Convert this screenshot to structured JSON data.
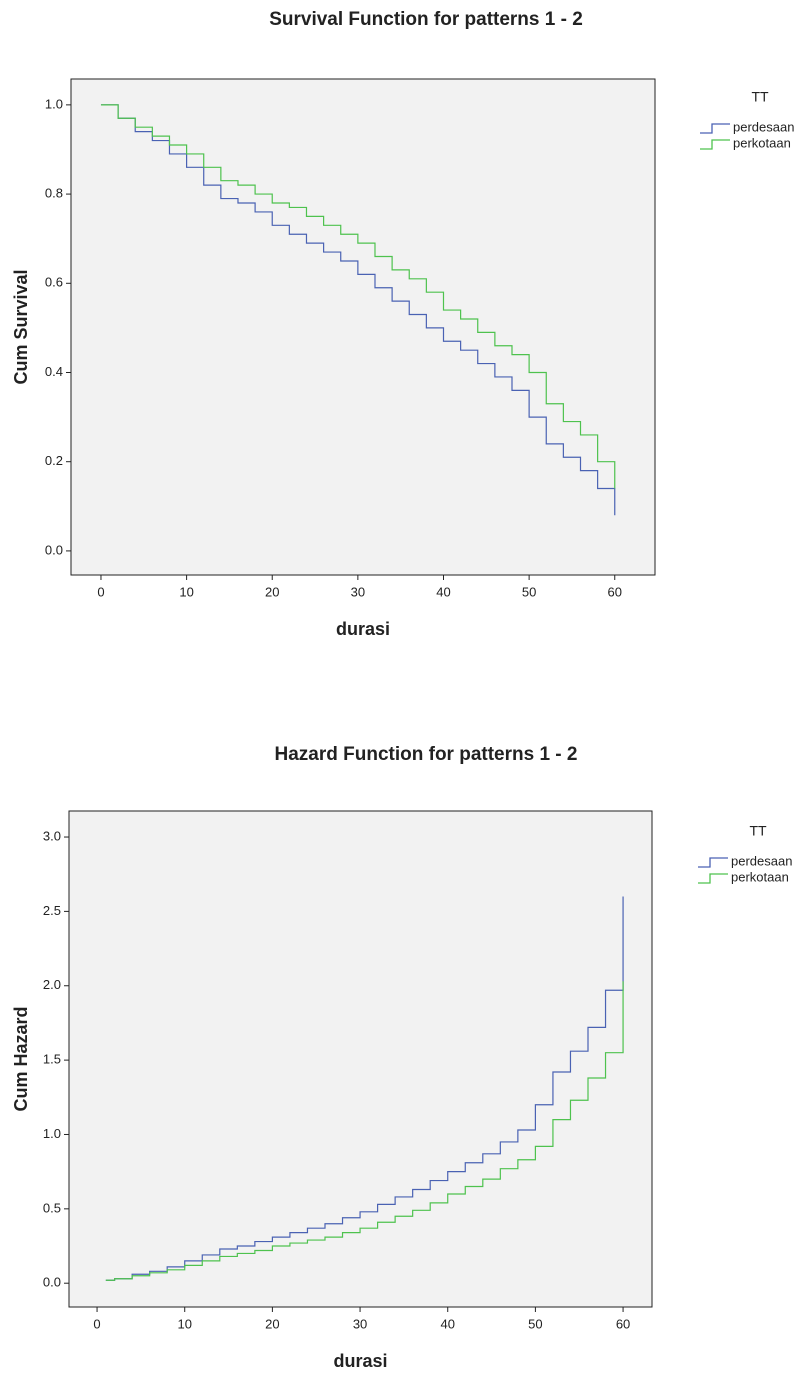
{
  "chart_data": [
    {
      "type": "step",
      "title": "Survival Function for patterns 1 - 2",
      "x_label": "durasi",
      "y_label": "Cum Survival",
      "legend_title": "TT",
      "x": [
        0,
        2,
        4,
        6,
        8,
        10,
        12,
        14,
        16,
        18,
        20,
        22,
        24,
        26,
        28,
        30,
        32,
        34,
        36,
        38,
        40,
        42,
        44,
        46,
        48,
        50,
        52,
        54,
        56,
        58,
        60
      ],
      "series": [
        {
          "name": "perdesaan",
          "color": "#4a62b3",
          "values": [
            1.0,
            0.97,
            0.94,
            0.92,
            0.89,
            0.86,
            0.82,
            0.79,
            0.78,
            0.76,
            0.73,
            0.71,
            0.69,
            0.67,
            0.65,
            0.62,
            0.59,
            0.56,
            0.53,
            0.5,
            0.47,
            0.45,
            0.42,
            0.39,
            0.36,
            0.3,
            0.24,
            0.21,
            0.18,
            0.14,
            0.08
          ]
        },
        {
          "name": "perkotaan",
          "color": "#4ec24e",
          "values": [
            1.0,
            0.97,
            0.95,
            0.93,
            0.91,
            0.89,
            0.86,
            0.83,
            0.82,
            0.8,
            0.78,
            0.77,
            0.75,
            0.73,
            0.71,
            0.69,
            0.66,
            0.63,
            0.61,
            0.58,
            0.54,
            0.52,
            0.49,
            0.46,
            0.44,
            0.4,
            0.33,
            0.29,
            0.26,
            0.2,
            0.14
          ]
        }
      ],
      "xlim": [
        -3.5,
        64.7
      ],
      "xticks": [
        0,
        10,
        20,
        30,
        40,
        50,
        60
      ],
      "ylim": [
        -0.054,
        1.058
      ],
      "yticks": [
        {
          "value": 0,
          "label": "0.0"
        },
        {
          "value": 0.2,
          "label": "0.2"
        },
        {
          "value": 0.4,
          "label": "0.4"
        },
        {
          "value": 0.6,
          "label": "0.6"
        },
        {
          "value": 0.8,
          "label": "0.8"
        },
        {
          "value": 1,
          "label": "1.0"
        }
      ]
    },
    {
      "type": "step",
      "title": "Hazard Function for patterns 1 - 2",
      "x_label": "durasi",
      "y_label": "Cum Hazard",
      "legend_title": "TT",
      "x": [
        1,
        2,
        4,
        6,
        8,
        10,
        12,
        14,
        16,
        18,
        20,
        22,
        24,
        26,
        28,
        30,
        32,
        34,
        36,
        38,
        40,
        42,
        44,
        46,
        48,
        50,
        52,
        54,
        56,
        58,
        60
      ],
      "series": [
        {
          "name": "perdesaan",
          "color": "#4a62b3",
          "values": [
            0.02,
            0.03,
            0.06,
            0.08,
            0.11,
            0.15,
            0.19,
            0.23,
            0.25,
            0.28,
            0.31,
            0.34,
            0.37,
            0.4,
            0.44,
            0.48,
            0.53,
            0.58,
            0.63,
            0.69,
            0.75,
            0.81,
            0.87,
            0.95,
            1.03,
            1.2,
            1.42,
            1.56,
            1.72,
            1.97,
            2.6
          ]
        },
        {
          "name": "perkotaan",
          "color": "#4ec24e",
          "values": [
            0.02,
            0.03,
            0.05,
            0.07,
            0.09,
            0.12,
            0.15,
            0.18,
            0.2,
            0.22,
            0.25,
            0.27,
            0.29,
            0.31,
            0.34,
            0.37,
            0.41,
            0.45,
            0.49,
            0.54,
            0.6,
            0.65,
            0.7,
            0.77,
            0.83,
            0.92,
            1.1,
            1.23,
            1.38,
            1.55,
            2.03
          ]
        }
      ],
      "xlim": [
        -3.2,
        63.3
      ],
      "xticks": [
        0,
        10,
        20,
        30,
        40,
        50,
        60
      ],
      "ylim": [
        -0.16,
        3.175
      ],
      "yticks": [
        {
          "value": 0,
          "label": "0.0"
        },
        {
          "value": 0.5,
          "label": "0.5"
        },
        {
          "value": 1,
          "label": "1.0"
        },
        {
          "value": 1.5,
          "label": "1.5"
        },
        {
          "value": 2,
          "label": "2.0"
        },
        {
          "value": 2.5,
          "label": "2.5"
        },
        {
          "value": 3,
          "label": "3.0"
        }
      ]
    }
  ]
}
